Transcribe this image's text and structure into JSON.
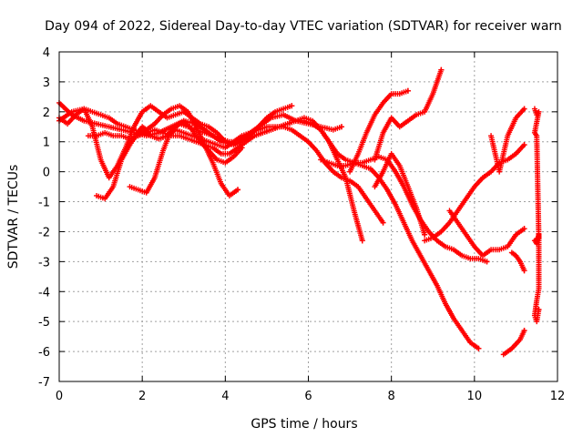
{
  "chart_data": {
    "type": "scatter",
    "title": "Day 094 of 2022, Sidereal Day-to-day VTEC variation (SDTVAR) for receiver warn",
    "xlabel": "GPS time / hours",
    "ylabel": "SDTVAR / TECUs",
    "xlim": [
      0,
      12
    ],
    "ylim": [
      -7,
      4
    ],
    "xticks": [
      "0",
      "2",
      "4",
      "6",
      "8",
      "10",
      "12"
    ],
    "yticks": [
      "-7",
      "-6",
      "-5",
      "-4",
      "-3",
      "-2",
      "-1",
      "0",
      "1",
      "2",
      "3",
      "4"
    ],
    "grid": true,
    "legend": "none",
    "marker": "+",
    "color": "#ff0000",
    "series": [
      {
        "x": [
          0.0,
          0.3,
          0.6,
          0.9,
          1.2,
          1.5,
          1.8,
          2.1,
          2.4,
          2.7,
          3.0,
          3.3,
          3.6,
          3.9,
          4.2,
          4.5,
          4.8,
          5.1,
          5.4,
          5.7,
          6.0,
          6.3,
          6.6,
          6.8
        ],
        "y": [
          2.3,
          1.9,
          1.7,
          1.6,
          1.5,
          1.4,
          1.3,
          1.2,
          1.3,
          1.5,
          1.7,
          1.6,
          1.3,
          1.0,
          0.9,
          1.1,
          1.5,
          1.8,
          1.9,
          1.7,
          1.6,
          1.5,
          1.4,
          1.5
        ]
      },
      {
        "x": [
          0.0,
          0.2,
          0.4,
          0.6,
          0.8,
          1.0,
          1.2,
          1.4,
          1.6,
          1.8,
          2.0,
          2.2,
          2.4,
          2.6,
          2.8,
          3.0,
          3.2,
          3.4,
          3.6,
          3.8,
          4.0,
          4.2,
          4.4
        ],
        "y": [
          1.8,
          1.6,
          1.9,
          2.1,
          2.0,
          1.9,
          1.8,
          1.6,
          1.5,
          1.4,
          1.3,
          1.2,
          1.1,
          1.2,
          1.5,
          1.7,
          1.4,
          1.0,
          0.7,
          0.4,
          0.3,
          0.5,
          0.8
        ]
      },
      {
        "x": [
          0.0,
          0.3,
          0.6,
          0.8,
          1.0,
          1.2,
          1.4,
          1.6,
          1.8,
          2.0,
          2.2,
          2.4,
          2.6,
          2.8,
          3.0,
          3.2,
          3.4,
          3.6,
          3.8,
          4.0,
          4.2,
          4.4,
          4.6,
          4.8,
          5.0,
          5.2,
          5.4,
          5.6
        ],
        "y": [
          1.7,
          2.0,
          2.1,
          1.5,
          0.4,
          -0.2,
          0.2,
          0.8,
          1.5,
          2.0,
          2.2,
          2.0,
          1.8,
          1.9,
          2.0,
          1.8,
          1.6,
          1.5,
          1.3,
          1.0,
          0.9,
          1.1,
          1.3,
          1.5,
          1.8,
          2.0,
          2.1,
          2.2
        ]
      },
      {
        "x": [
          0.7,
          0.9,
          1.1,
          1.3,
          1.5,
          1.7,
          1.9,
          2.1,
          2.3,
          2.5,
          2.7,
          2.9,
          3.1,
          3.3,
          3.5,
          3.7,
          3.9,
          4.1,
          4.3,
          4.5,
          4.7,
          4.9,
          5.1,
          5.3,
          5.5,
          5.7,
          5.9,
          6.1,
          6.3,
          6.5,
          6.7,
          6.9,
          7.1,
          7.3
        ],
        "y": [
          1.2,
          1.2,
          1.3,
          1.2,
          1.2,
          1.1,
          1.2,
          1.3,
          1.4,
          1.3,
          1.2,
          1.2,
          1.1,
          1.0,
          0.9,
          0.8,
          0.6,
          0.6,
          0.8,
          1.0,
          1.2,
          1.3,
          1.4,
          1.5,
          1.6,
          1.7,
          1.8,
          1.7,
          1.4,
          1.0,
          0.4,
          -0.2,
          -1.3,
          -2.3
        ]
      },
      {
        "x": [
          0.9,
          1.1,
          1.3,
          1.5,
          1.7,
          1.9,
          2.0,
          2.1,
          2.2,
          2.4,
          2.6,
          2.8,
          3.0,
          3.2,
          3.4,
          3.6,
          3.8,
          4.0,
          4.2,
          4.4,
          4.6,
          4.8,
          5.0,
          5.2,
          5.4,
          5.6,
          5.8,
          6.0,
          6.2,
          6.4,
          6.6,
          6.8,
          7.0,
          7.2,
          7.4,
          7.6,
          7.8
        ],
        "y": [
          -0.8,
          -0.9,
          -0.5,
          0.4,
          0.9,
          1.3,
          1.5,
          1.4,
          1.2,
          1.1,
          1.2,
          1.4,
          1.3,
          1.2,
          1.1,
          1.0,
          0.9,
          0.8,
          1.0,
          1.2,
          1.3,
          1.4,
          1.5,
          1.5,
          1.5,
          1.4,
          1.2,
          1.0,
          0.7,
          0.3,
          0.0,
          -0.2,
          -0.3,
          -0.5,
          -0.9,
          -1.3,
          -1.7
        ]
      },
      {
        "x": [
          1.7,
          1.9,
          2.1,
          2.3,
          2.5,
          2.7,
          2.9,
          3.1,
          3.3,
          3.5,
          3.7,
          3.9,
          4.1,
          4.3,
          4.5,
          4.7,
          4.9,
          5.1,
          5.3,
          5.5,
          5.7,
          5.9,
          6.1,
          6.3,
          6.5,
          6.7,
          6.9,
          7.1,
          7.3,
          7.5,
          7.7,
          7.9,
          8.1,
          8.3,
          8.5,
          8.7,
          8.9,
          9.1,
          9.3,
          9.5,
          9.7,
          9.9,
          10.1
        ],
        "y": [
          -0.5,
          -0.6,
          -0.7,
          -0.2,
          0.7,
          1.4,
          1.6,
          1.5,
          1.4,
          1.3,
          1.2,
          1.1,
          1.0,
          1.0,
          1.1,
          1.2,
          1.3,
          1.4,
          1.5,
          1.6,
          1.7,
          1.7,
          1.6,
          1.4,
          1.0,
          0.6,
          0.4,
          0.3,
          0.2,
          0.1,
          -0.2,
          -0.6,
          -1.1,
          -1.7,
          -2.3,
          -2.8,
          -3.3,
          -3.8,
          -4.4,
          -4.9,
          -5.3,
          -5.7,
          -5.9
        ]
      },
      {
        "x": [
          1.9,
          2.1,
          2.3,
          2.5,
          2.7,
          2.9,
          3.1,
          3.3,
          3.5,
          3.7,
          3.9,
          4.1,
          4.3
        ],
        "y": [
          1.2,
          1.4,
          1.6,
          1.9,
          2.1,
          2.2,
          2.0,
          1.5,
          0.9,
          0.3,
          -0.4,
          -0.8,
          -0.6
        ]
      },
      {
        "x": [
          6.3,
          6.5,
          6.7,
          6.9,
          7.1,
          7.3,
          7.5,
          7.7,
          7.9,
          8.1,
          8.3,
          8.5,
          8.7,
          8.9,
          9.1,
          9.3,
          9.5,
          9.7,
          9.9,
          10.1,
          10.3
        ],
        "y": [
          0.4,
          0.3,
          0.2,
          0.2,
          0.3,
          0.3,
          0.4,
          0.5,
          0.4,
          0.0,
          -0.5,
          -1.1,
          -1.6,
          -2.0,
          -2.3,
          -2.5,
          -2.6,
          -2.8,
          -2.9,
          -2.9,
          -3.0
        ]
      },
      {
        "x": [
          7.0,
          7.2,
          7.4,
          7.6,
          7.8,
          8.0,
          8.2,
          8.4
        ],
        "y": [
          0.0,
          0.6,
          1.3,
          1.9,
          2.3,
          2.6,
          2.6,
          2.7
        ]
      },
      {
        "x": [
          7.6,
          7.8,
          8.0,
          8.2,
          8.4,
          8.6,
          8.8,
          9.0,
          9.2
        ],
        "y": [
          0.4,
          1.3,
          1.8,
          1.5,
          1.7,
          1.9,
          2.0,
          2.6,
          3.4
        ]
      },
      {
        "x": [
          7.6,
          7.8,
          8.0,
          8.2,
          8.4,
          8.6,
          8.8
        ],
        "y": [
          -0.5,
          0.0,
          0.6,
          0.2,
          -0.5,
          -1.2,
          -2.1
        ]
      },
      {
        "x": [
          8.8,
          9.0,
          9.2,
          9.4,
          9.6,
          9.8,
          10.0,
          10.2,
          10.4,
          10.6,
          10.8,
          11.0,
          11.2
        ],
        "y": [
          -2.3,
          -2.2,
          -2.0,
          -1.7,
          -1.3,
          -0.9,
          -0.5,
          -0.2,
          0.0,
          0.3,
          0.4,
          0.6,
          0.9
        ]
      },
      {
        "x": [
          9.4,
          9.6,
          9.8,
          10.0,
          10.2,
          10.4,
          10.6,
          10.8,
          11.0,
          11.2
        ],
        "y": [
          -1.3,
          -1.7,
          -2.1,
          -2.5,
          -2.8,
          -2.6,
          -2.6,
          -2.5,
          -2.1,
          -1.9
        ]
      },
      {
        "x": [
          10.4,
          10.6,
          10.8,
          11.0,
          11.2
        ],
        "y": [
          1.2,
          0.0,
          1.2,
          1.8,
          2.1
        ]
      },
      {
        "x": [
          10.7,
          10.9,
          11.1,
          11.2
        ],
        "y": [
          -6.1,
          -5.9,
          -5.6,
          -5.3
        ]
      },
      {
        "x": [
          10.9,
          11.0,
          11.1,
          11.2
        ],
        "y": [
          -2.7,
          -2.8,
          -3.0,
          -3.3
        ]
      },
      {
        "x": [
          11.45,
          11.5,
          11.55,
          11.45,
          11.5,
          11.55,
          11.45,
          11.5,
          11.55,
          11.55,
          11.5,
          11.45,
          11.5,
          11.55
        ],
        "y": [
          2.1,
          1.9,
          2.0,
          1.3,
          1.2,
          -2.2,
          -2.3,
          -2.4,
          -2.1,
          -3.9,
          -4.3,
          -4.8,
          -5.0,
          -4.6
        ]
      }
    ]
  }
}
